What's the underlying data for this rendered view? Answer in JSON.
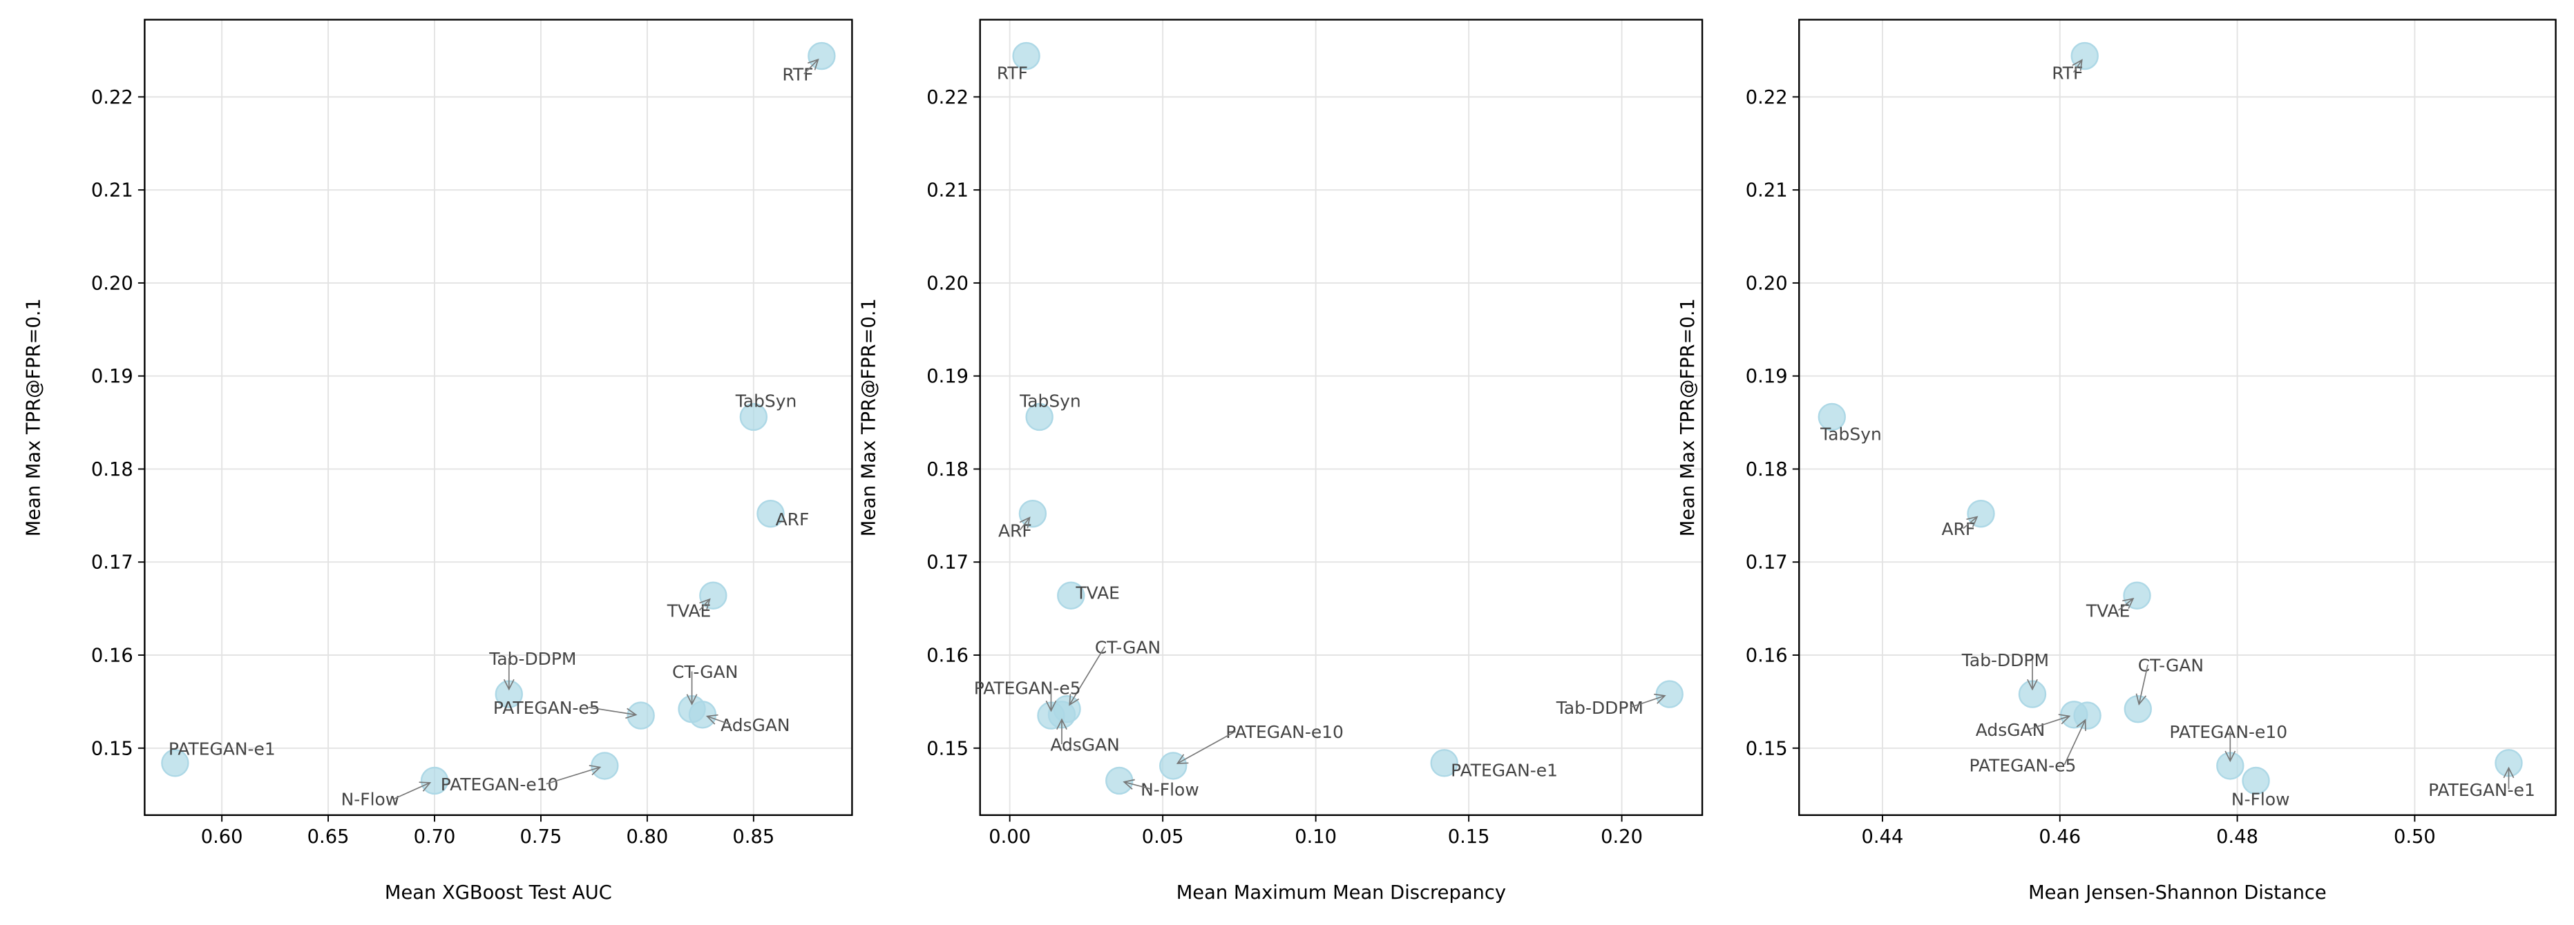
{
  "chart_data": [
    {
      "type": "scatter",
      "xlabel": "Mean XGBoost Test AUC",
      "ylabel": "Mean Max TPR@FPR=0.1",
      "xlim": [
        0.5637,
        0.8963
      ],
      "ylim": [
        0.1428,
        0.2283
      ],
      "xticks": [
        "0.60",
        "0.65",
        "0.70",
        "0.75",
        "0.80",
        "0.85"
      ],
      "yticks": [
        "0.15",
        "0.16",
        "0.17",
        "0.18",
        "0.19",
        "0.20",
        "0.21",
        "0.22"
      ],
      "grid": true,
      "color": "#add8e6",
      "points": [
        {
          "label": "RTF",
          "x": 0.882,
          "y": 0.2244
        },
        {
          "label": "TabSyn",
          "x": 0.85,
          "y": 0.1856
        },
        {
          "label": "ARF",
          "x": 0.858,
          "y": 0.1752
        },
        {
          "label": "TVAE",
          "x": 0.831,
          "y": 0.1664
        },
        {
          "label": "Tab-DDPM",
          "x": 0.735,
          "y": 0.1558
        },
        {
          "label": "PATEGAN-e5",
          "x": 0.797,
          "y": 0.1535
        },
        {
          "label": "CT-GAN",
          "x": 0.821,
          "y": 0.1542
        },
        {
          "label": "AdsGAN",
          "x": 0.826,
          "y": 0.1536
        },
        {
          "label": "PATEGAN-e1",
          "x": 0.578,
          "y": 0.1484
        },
        {
          "label": "N-Flow",
          "x": 0.7,
          "y": 0.1465
        },
        {
          "label": "PATEGAN-e10",
          "x": 0.78,
          "y": 0.1481
        }
      ]
    },
    {
      "type": "scatter",
      "xlabel": "Mean Maximum Mean Discrepancy",
      "ylabel": "Mean Max TPR@FPR=0.1",
      "xlim": [
        -0.0097,
        0.2263
      ],
      "ylim": [
        0.1428,
        0.2283
      ],
      "xticks": [
        "0.00",
        "0.05",
        "0.10",
        "0.15",
        "0.20"
      ],
      "yticks": [
        "0.15",
        "0.16",
        "0.17",
        "0.18",
        "0.19",
        "0.20",
        "0.21",
        "0.22"
      ],
      "grid": true,
      "color": "#add8e6",
      "points": [
        {
          "label": "RTF",
          "x": 0.0054,
          "y": 0.2244
        },
        {
          "label": "TabSyn",
          "x": 0.0097,
          "y": 0.1856
        },
        {
          "label": "ARF",
          "x": 0.0075,
          "y": 0.1752
        },
        {
          "label": "TVAE",
          "x": 0.02,
          "y": 0.1664
        },
        {
          "label": "CT-GAN",
          "x": 0.0187,
          "y": 0.1542
        },
        {
          "label": "PATEGAN-e5",
          "x": 0.0135,
          "y": 0.1535
        },
        {
          "label": "AdsGAN",
          "x": 0.017,
          "y": 0.1536
        },
        {
          "label": "Tab-DDPM",
          "x": 0.2156,
          "y": 0.1558
        },
        {
          "label": "PATEGAN-e1",
          "x": 0.142,
          "y": 0.1484
        },
        {
          "label": "PATEGAN-e10",
          "x": 0.0534,
          "y": 0.1481
        },
        {
          "label": "N-Flow",
          "x": 0.0358,
          "y": 0.1465
        }
      ]
    },
    {
      "type": "scatter",
      "xlabel": "Mean Jensen-Shannon Distance",
      "ylabel": "Mean Max TPR@FPR=0.1",
      "xlim": [
        0.4306,
        0.5159
      ],
      "ylim": [
        0.1428,
        0.2283
      ],
      "xticks": [
        "0.44",
        "0.46",
        "0.48",
        "0.50"
      ],
      "yticks": [
        "0.15",
        "0.16",
        "0.17",
        "0.18",
        "0.19",
        "0.20",
        "0.21",
        "0.22"
      ],
      "grid": true,
      "color": "#add8e6",
      "points": [
        {
          "label": "RTF",
          "x": 0.4628,
          "y": 0.2244
        },
        {
          "label": "TabSyn",
          "x": 0.4343,
          "y": 0.1856
        },
        {
          "label": "ARF",
          "x": 0.4511,
          "y": 0.1752
        },
        {
          "label": "TVAE",
          "x": 0.4687,
          "y": 0.1664
        },
        {
          "label": "Tab-DDPM",
          "x": 0.4569,
          "y": 0.1558
        },
        {
          "label": "CT-GAN",
          "x": 0.4688,
          "y": 0.1542
        },
        {
          "label": "AdsGAN",
          "x": 0.4616,
          "y": 0.1536
        },
        {
          "label": "PATEGAN-e5",
          "x": 0.4631,
          "y": 0.1535
        },
        {
          "label": "PATEGAN-e10",
          "x": 0.4792,
          "y": 0.1481
        },
        {
          "label": "N-Flow",
          "x": 0.4821,
          "y": 0.1465
        },
        {
          "label": "PATEGAN-e1",
          "x": 0.5106,
          "y": 0.1484
        }
      ]
    }
  ]
}
